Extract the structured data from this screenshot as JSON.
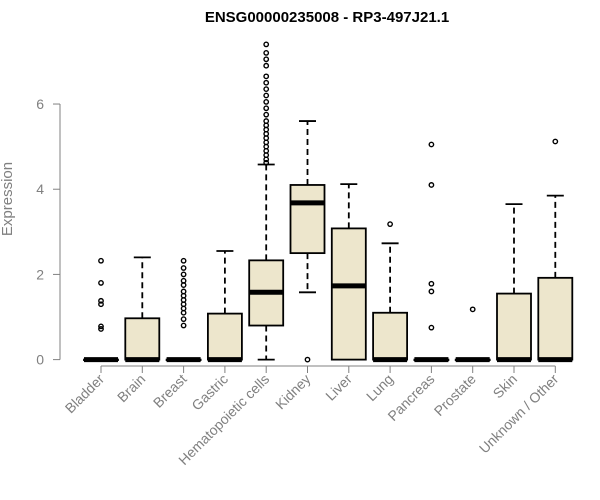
{
  "chart_data": {
    "type": "boxplot",
    "title": "ENSG00000235008 - RP3-497J21.1",
    "xlabel": "",
    "ylabel": "Expression",
    "ylim": [
      -0.15,
      7.55
    ],
    "yticks": [
      0,
      2,
      4,
      6
    ],
    "grid": false,
    "legend": "none",
    "colors": {
      "box_fill": "#ede6cc",
      "box_stroke": "#000000",
      "axis": "#808080",
      "title": "#000000"
    },
    "categories": [
      "Bladder",
      "Brain",
      "Breast",
      "Gastric",
      "Hematopoietic cells",
      "Kidney",
      "Liver",
      "Lung",
      "Pancreas",
      "Prostate",
      "Skin",
      "Unknown / Other"
    ],
    "boxes": [
      {
        "name": "Bladder",
        "whisker_low": 0,
        "q1": 0,
        "median": 0,
        "q3": 0,
        "whisker_high": 0,
        "outliers": [
          0.72,
          0.78,
          1.3,
          1.38,
          1.8,
          2.32
        ]
      },
      {
        "name": "Brain",
        "whisker_low": 0,
        "q1": 0,
        "median": 0,
        "q3": 0.97,
        "whisker_high": 2.4,
        "outliers": []
      },
      {
        "name": "Breast",
        "whisker_low": 0,
        "q1": 0,
        "median": 0,
        "q3": 0,
        "whisker_high": 0,
        "outliers": [
          0.8,
          0.95,
          1.1,
          1.2,
          1.3,
          1.4,
          1.5,
          1.6,
          1.75,
          1.85,
          2.0,
          2.15,
          2.32
        ]
      },
      {
        "name": "Gastric",
        "whisker_low": 0,
        "q1": 0,
        "median": 0,
        "q3": 1.08,
        "whisker_high": 2.55,
        "outliers": []
      },
      {
        "name": "Hematopoietic cells",
        "whisker_low": 0,
        "q1": 0.8,
        "median": 1.58,
        "q3": 2.33,
        "whisker_high": 4.58,
        "outliers": [
          4.62,
          4.7,
          4.8,
          4.9,
          5.0,
          5.1,
          5.2,
          5.3,
          5.4,
          5.5,
          5.6,
          5.75,
          5.9,
          6.05,
          6.2,
          6.35,
          6.5,
          6.65,
          6.9,
          7.05,
          7.2,
          7.4
        ]
      },
      {
        "name": "Kidney",
        "whisker_low": 1.58,
        "q1": 2.5,
        "median": 3.68,
        "q3": 4.1,
        "whisker_high": 5.6,
        "outliers": [
          0
        ]
      },
      {
        "name": "Liver",
        "whisker_low": 0,
        "q1": 0,
        "median": 1.73,
        "q3": 3.08,
        "whisker_high": 4.12,
        "outliers": []
      },
      {
        "name": "Lung",
        "whisker_low": 0,
        "q1": 0,
        "median": 0,
        "q3": 1.1,
        "whisker_high": 2.73,
        "outliers": [
          3.18
        ]
      },
      {
        "name": "Pancreas",
        "whisker_low": 0,
        "q1": 0,
        "median": 0,
        "q3": 0,
        "whisker_high": 0,
        "outliers": [
          0.75,
          1.6,
          1.78,
          4.1,
          5.05
        ]
      },
      {
        "name": "Prostate",
        "whisker_low": 0,
        "q1": 0,
        "median": 0,
        "q3": 0,
        "whisker_high": 0,
        "outliers": [
          1.18
        ]
      },
      {
        "name": "Skin",
        "whisker_low": 0,
        "q1": 0,
        "median": 0,
        "q3": 1.55,
        "whisker_high": 3.65,
        "outliers": []
      },
      {
        "name": "Unknown / Other",
        "whisker_low": 0,
        "q1": 0,
        "median": 0,
        "q3": 1.92,
        "whisker_high": 3.85,
        "outliers": [
          5.12
        ]
      }
    ]
  }
}
